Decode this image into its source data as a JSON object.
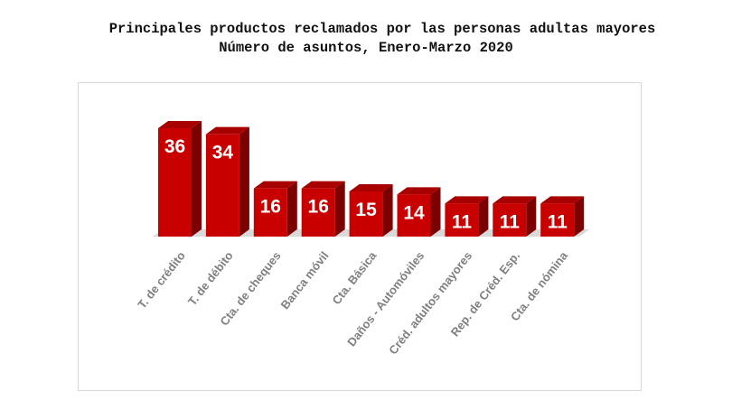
{
  "chart_data": {
    "type": "bar",
    "title": "Principales productos reclamados por las personas adultas mayores",
    "subtitle": "Número de asuntos, Enero-Marzo 2020",
    "categories": [
      "T. de crédito",
      "T. de débito",
      "Cta. de cheques",
      "Banca móvil",
      "Cta. Básica",
      "Daños - Automóviles",
      "Créd. adultos mayores",
      "Rep. de Créd. Esp.",
      "Cta. de nómina"
    ],
    "values": [
      36,
      34,
      16,
      16,
      15,
      14,
      11,
      11,
      11
    ],
    "xlabel": "",
    "ylabel": "",
    "ylim": [
      0,
      40
    ],
    "grid": false,
    "legend": "none",
    "colors": {
      "bar_front": "#c80000",
      "bar_side": "#7d0000",
      "bar_top": "#a80000",
      "floor": "#d9d9d9",
      "value_label": "#ffffff",
      "category_label": "#7f7f7f"
    }
  }
}
